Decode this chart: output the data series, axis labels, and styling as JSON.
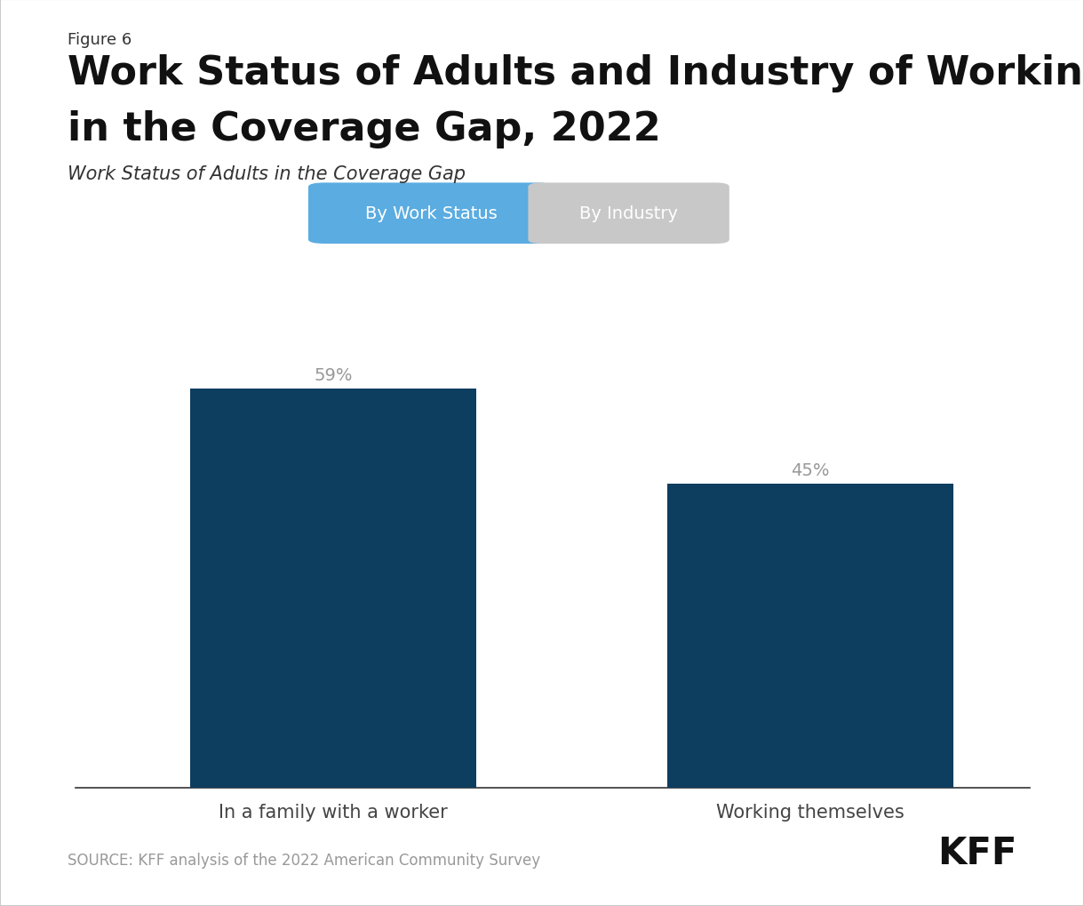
{
  "figure_label": "Figure 6",
  "title_line1": "Work Status of Adults and Industry of Working Adults",
  "title_line2": "in the Coverage Gap, 2022",
  "subtitle": "Work Status of Adults in the Coverage Gap",
  "button1_text": "By Work Status",
  "button2_text": "By Industry",
  "button1_color": "#5aace1",
  "button2_color": "#c8c8c8",
  "button_text_color": "#ffffff",
  "categories": [
    "In a family with a worker",
    "Working themselves"
  ],
  "values": [
    59,
    45
  ],
  "bar_color": "#0d3d5f",
  "value_labels": [
    "59%",
    "45%"
  ],
  "value_label_color": "#999999",
  "source_text": "SOURCE: KFF analysis of the 2022 American Community Survey",
  "source_color": "#999999",
  "kff_text": "KFF",
  "background_color": "#ffffff",
  "border_color": "#cccccc",
  "axis_line_color": "#333333",
  "tick_label_color": "#444444",
  "figure_label_fontsize": 13,
  "title_fontsize": 32,
  "subtitle_fontsize": 15,
  "bar_label_fontsize": 14,
  "tick_label_fontsize": 15,
  "source_fontsize": 12,
  "kff_fontsize": 30,
  "button_fontsize": 14,
  "ylim": [
    0,
    75
  ],
  "x_positions": [
    0.27,
    0.77
  ],
  "bar_width": 0.3
}
